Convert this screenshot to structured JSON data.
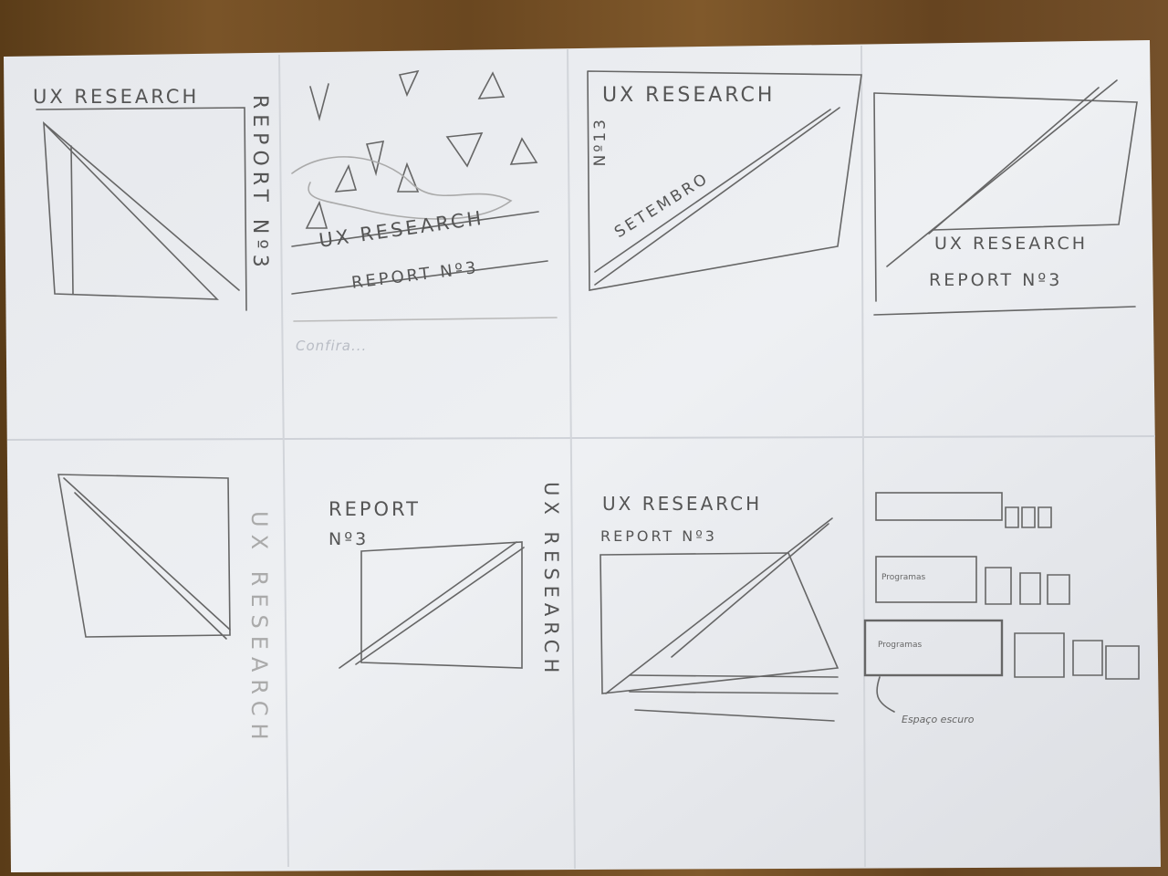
{
  "sketches": {
    "s1": {
      "title": "UX RESEARCH",
      "side": "REPORT Nº3"
    },
    "s2": {
      "title": "UX RESEARCH",
      "subtitle": "REPORT Nº3",
      "note": "Confira..."
    },
    "s3": {
      "title": "UX RESEARCH",
      "number": "Nº13",
      "month": "SETEMBRO"
    },
    "s4": {
      "title": "UX RESEARCH",
      "subtitle": "REPORT Nº3"
    },
    "s5": {
      "side": "UX RESEARCH"
    },
    "s6": {
      "title": "REPORT",
      "number": "Nº3",
      "side": "UX RESEARCH"
    },
    "s7": {
      "title": "UX RESEARCH",
      "subtitle": "REPORT Nº3"
    },
    "s8": {
      "box1": "Programas",
      "box2": "Programas",
      "annotation": "Espaço escuro"
    }
  },
  "colors": {
    "paper": "#e9eaee",
    "pencil": "#555555",
    "wood": "#6b4a22"
  }
}
